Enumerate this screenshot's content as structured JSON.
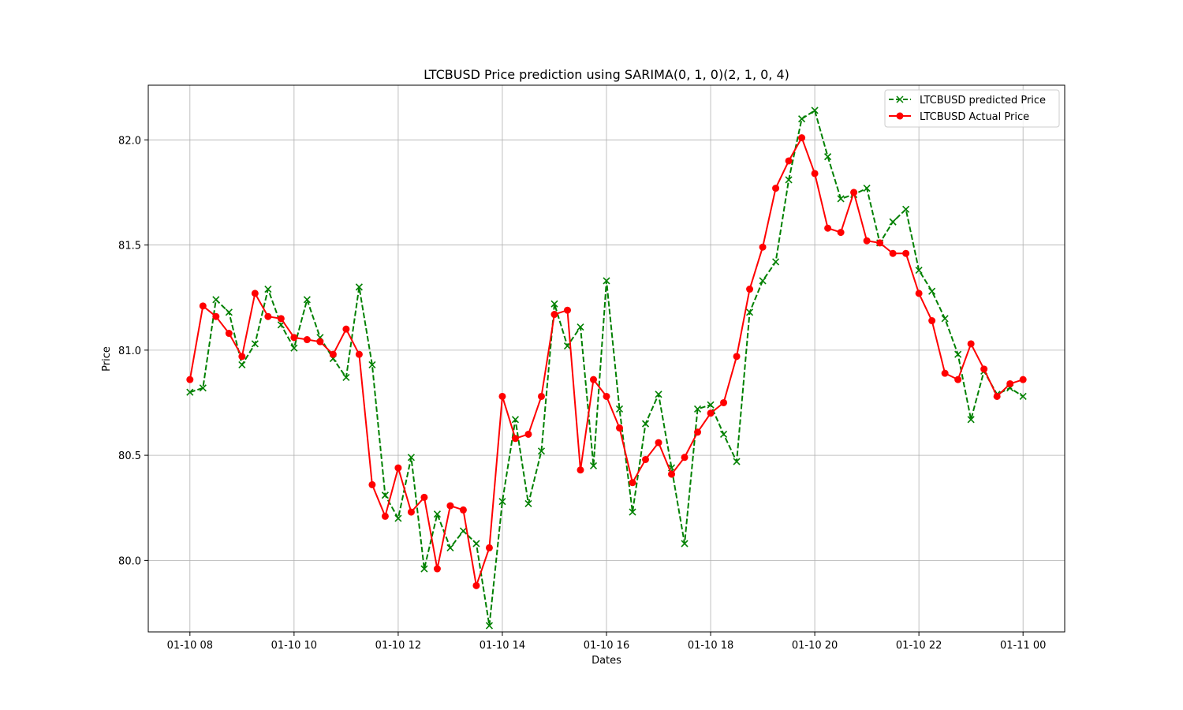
{
  "chart_data": {
    "type": "line",
    "title": "LTCBUSD Price prediction using SARIMA(0, 1, 0)(2, 1, 0, 4)",
    "xlabel": "Dates",
    "ylabel": "Price",
    "x_range_hours": [
      -0.8,
      16.8
    ],
    "ylim": [
      79.66,
      82.26
    ],
    "x_tick_hours": [
      0,
      2,
      4,
      6,
      8,
      10,
      12,
      14,
      16
    ],
    "x_tick_labels": [
      "01-10 08",
      "01-10 10",
      "01-10 12",
      "01-10 14",
      "01-10 16",
      "01-10 18",
      "01-10 20",
      "01-10 22",
      "01-11 00"
    ],
    "y_ticks": [
      80.0,
      80.5,
      81.0,
      81.5,
      82.0
    ],
    "y_tick_labels": [
      "80.0",
      "80.5",
      "81.0",
      "81.5",
      "82.0"
    ],
    "grid": true,
    "legend_position": "top-right",
    "x_start": "2023-01-10 08:00",
    "x_end": "2023-01-11 00:00",
    "x_interval_minutes": 15,
    "series": [
      {
        "name": "LTCBUSD predicted Price",
        "color": "#008000",
        "line_style": "dashed",
        "marker": "x",
        "values": [
          80.8,
          80.82,
          81.24,
          81.18,
          80.93,
          81.03,
          81.29,
          81.12,
          81.01,
          81.24,
          81.06,
          80.96,
          80.87,
          81.3,
          80.93,
          80.31,
          80.2,
          80.49,
          79.96,
          80.22,
          80.06,
          80.14,
          80.08,
          79.69,
          80.28,
          80.67,
          80.27,
          80.52,
          81.22,
          81.02,
          81.11,
          80.45,
          81.33,
          80.72,
          80.23,
          80.65,
          80.79,
          80.44,
          80.08,
          80.72,
          80.74,
          80.6,
          80.47,
          81.18,
          81.33,
          81.42,
          81.81,
          82.1,
          82.14,
          81.92,
          81.72,
          81.74,
          81.77,
          81.51,
          81.61,
          81.67,
          81.38,
          81.28,
          81.15,
          80.98,
          80.67,
          80.9,
          80.79,
          80.82,
          80.78
        ]
      },
      {
        "name": "LTCBUSD Actual Price",
        "color": "#ff0000",
        "line_style": "solid",
        "marker": "circle",
        "values": [
          80.86,
          81.21,
          81.16,
          81.08,
          80.97,
          81.27,
          81.16,
          81.15,
          81.06,
          81.05,
          81.04,
          80.98,
          81.1,
          80.98,
          80.36,
          80.21,
          80.44,
          80.23,
          80.3,
          79.96,
          80.26,
          80.24,
          79.88,
          80.06,
          80.78,
          80.58,
          80.6,
          80.78,
          81.17,
          81.19,
          80.43,
          80.86,
          80.78,
          80.63,
          80.37,
          80.48,
          80.56,
          80.41,
          80.49,
          80.61,
          80.7,
          80.75,
          80.97,
          81.29,
          81.49,
          81.77,
          81.9,
          82.01,
          81.84,
          81.58,
          81.56,
          81.75,
          81.52,
          81.51,
          81.46,
          81.46,
          81.27,
          81.14,
          80.89,
          80.86,
          81.03,
          80.91,
          80.78,
          80.84,
          80.86
        ]
      }
    ]
  }
}
